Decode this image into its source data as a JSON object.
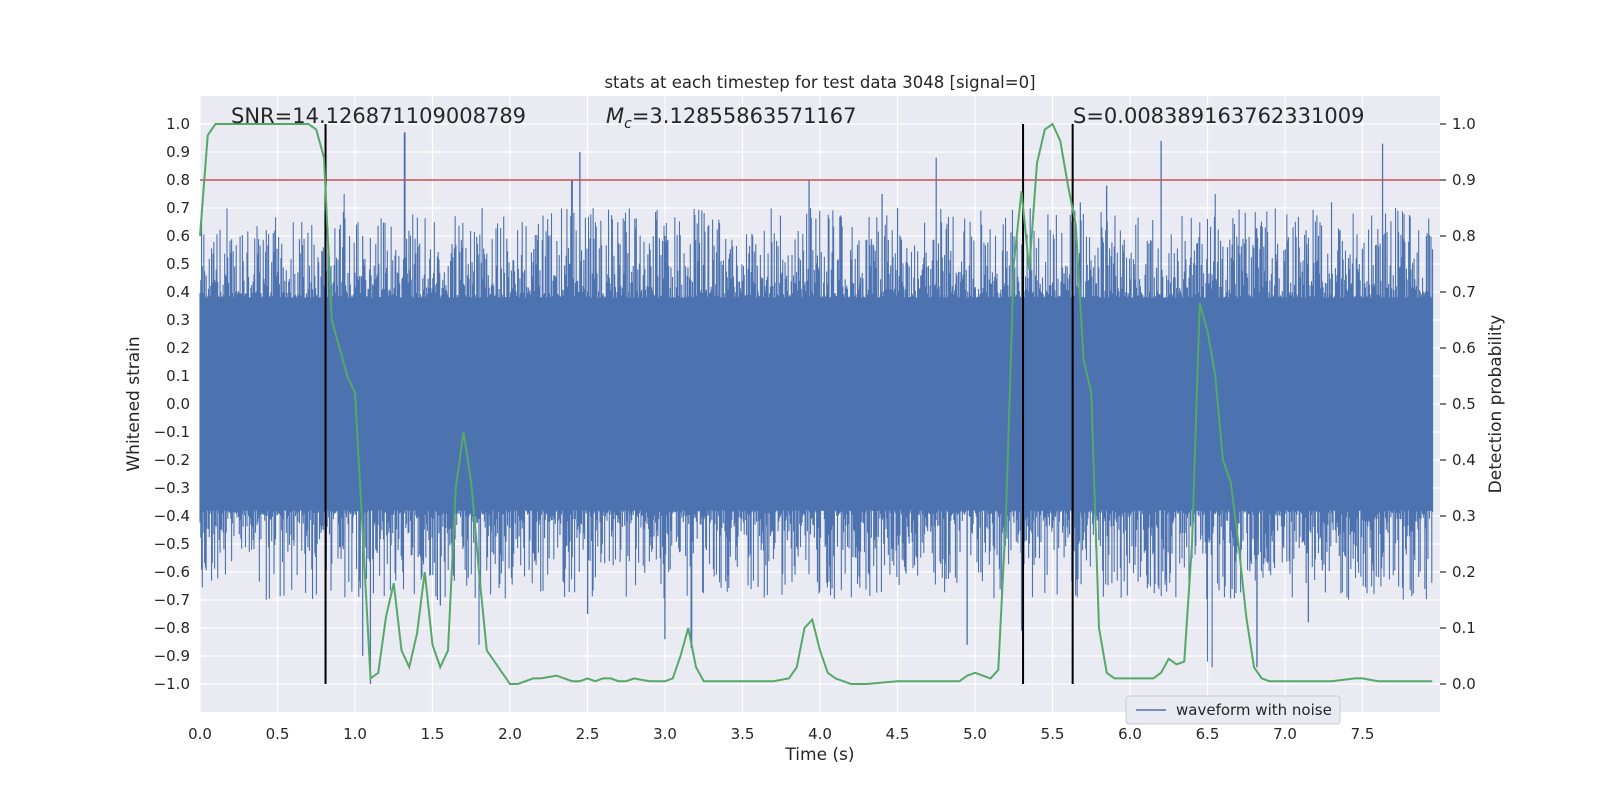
{
  "chart_data": {
    "type": "line",
    "title": "stats at each timestep for test data 3048 [signal=0]",
    "xlabel": "Time (s)",
    "ylabel": "Whitened strain",
    "y2label": "Detection probability",
    "xlim": [
      0.0,
      8.0
    ],
    "ylim": [
      -1.1,
      1.1
    ],
    "y2lim": [
      -0.05,
      1.05
    ],
    "xticks": [
      0.0,
      0.5,
      1.0,
      1.5,
      2.0,
      2.5,
      3.0,
      3.5,
      4.0,
      4.5,
      5.0,
      5.5,
      6.0,
      6.5,
      7.0,
      7.5
    ],
    "yticks": [
      -1.0,
      -0.9,
      -0.8,
      -0.7,
      -0.6,
      -0.5,
      -0.4,
      -0.3,
      -0.2,
      -0.1,
      0.0,
      0.1,
      0.2,
      0.3,
      0.4,
      0.5,
      0.6,
      0.7,
      0.8,
      0.9,
      1.0
    ],
    "y2ticks": [
      0.0,
      0.1,
      0.2,
      0.3,
      0.4,
      0.5,
      0.6,
      0.7,
      0.8,
      0.9,
      1.0
    ],
    "grid": true,
    "legend_position": "lower-right",
    "annotations": {
      "snr": "SNR=14.126871109008789",
      "mc_symbol": "M",
      "mc_sub": "c",
      "mc_value": "=3.12855863571167",
      "s": "S=0.008389163762331009"
    },
    "threshold_y": 0.8,
    "vertical_lines_x": [
      0.81,
      5.31,
      5.63
    ],
    "series": [
      {
        "name": "waveform with noise",
        "kind": "noise-band",
        "envelope_upper_prominent_peaks": [
          [
            0.93,
            0.75
          ],
          [
            1.05,
            0.6
          ],
          [
            1.32,
            0.97
          ],
          [
            1.82,
            0.7
          ],
          [
            2.4,
            0.8
          ],
          [
            2.45,
            0.9
          ],
          [
            3.0,
            0.6
          ],
          [
            3.93,
            0.8
          ],
          [
            4.4,
            0.75
          ],
          [
            4.5,
            0.7
          ],
          [
            4.75,
            0.88
          ],
          [
            5.68,
            0.72
          ],
          [
            5.85,
            0.78
          ],
          [
            6.2,
            0.94
          ],
          [
            6.55,
            0.75
          ],
          [
            7.3,
            0.72
          ],
          [
            7.63,
            0.93
          ]
        ],
        "envelope_lower_prominent_troughs": [
          [
            1.05,
            -0.9
          ],
          [
            1.1,
            -1.0
          ],
          [
            1.55,
            -0.72
          ],
          [
            1.8,
            -0.86
          ],
          [
            2.5,
            -0.75
          ],
          [
            3.0,
            -0.84
          ],
          [
            3.17,
            -0.87
          ],
          [
            4.95,
            -0.86
          ],
          [
            5.3,
            -0.81
          ],
          [
            6.5,
            -0.92
          ],
          [
            6.53,
            -0.94
          ],
          [
            6.82,
            -0.94
          ],
          [
            7.15,
            -0.78
          ]
        ]
      },
      {
        "name": "",
        "axis": "y2",
        "color": "#55a868",
        "x": [
          0.0,
          0.05,
          0.1,
          0.15,
          0.2,
          0.3,
          0.4,
          0.5,
          0.6,
          0.7,
          0.75,
          0.8,
          0.85,
          0.9,
          0.95,
          1.0,
          1.05,
          1.1,
          1.15,
          1.2,
          1.25,
          1.3,
          1.35,
          1.4,
          1.45,
          1.5,
          1.55,
          1.6,
          1.65,
          1.7,
          1.75,
          1.8,
          1.85,
          1.9,
          1.95,
          2.0,
          2.05,
          2.1,
          2.15,
          2.2,
          2.3,
          2.4,
          2.45,
          2.5,
          2.55,
          2.6,
          2.65,
          2.7,
          2.75,
          2.8,
          2.9,
          3.0,
          3.05,
          3.1,
          3.15,
          3.2,
          3.25,
          3.3,
          3.4,
          3.6,
          3.7,
          3.8,
          3.85,
          3.9,
          3.95,
          4.0,
          4.05,
          4.1,
          4.15,
          4.2,
          4.3,
          4.5,
          4.7,
          4.8,
          4.9,
          4.95,
          5.0,
          5.05,
          5.1,
          5.15,
          5.2,
          5.25,
          5.3,
          5.35,
          5.4,
          5.45,
          5.5,
          5.55,
          5.6,
          5.65,
          5.7,
          5.75,
          5.8,
          5.85,
          5.9,
          6.0,
          6.1,
          6.15,
          6.2,
          6.25,
          6.3,
          6.35,
          6.4,
          6.45,
          6.5,
          6.55,
          6.6,
          6.65,
          6.7,
          6.75,
          6.8,
          6.85,
          6.9,
          7.0,
          7.1,
          7.3,
          7.45,
          7.5,
          7.6,
          7.8,
          7.95
        ],
        "values": [
          0.8,
          0.98,
          1.0,
          1.0,
          1.0,
          1.0,
          1.0,
          1.0,
          1.0,
          1.0,
          0.99,
          0.94,
          0.65,
          0.6,
          0.55,
          0.52,
          0.27,
          0.01,
          0.02,
          0.12,
          0.18,
          0.06,
          0.03,
          0.09,
          0.2,
          0.07,
          0.03,
          0.06,
          0.35,
          0.45,
          0.36,
          0.2,
          0.06,
          0.04,
          0.02,
          0.0,
          0.0,
          0.005,
          0.01,
          0.01,
          0.015,
          0.005,
          0.005,
          0.01,
          0.005,
          0.01,
          0.01,
          0.005,
          0.005,
          0.01,
          0.005,
          0.005,
          0.01,
          0.05,
          0.1,
          0.03,
          0.005,
          0.005,
          0.005,
          0.005,
          0.005,
          0.01,
          0.03,
          0.1,
          0.115,
          0.06,
          0.02,
          0.01,
          0.005,
          0.0,
          0.0,
          0.005,
          0.005,
          0.005,
          0.005,
          0.015,
          0.02,
          0.015,
          0.01,
          0.025,
          0.3,
          0.75,
          0.88,
          0.74,
          0.93,
          0.99,
          1.0,
          0.97,
          0.89,
          0.82,
          0.58,
          0.52,
          0.1,
          0.02,
          0.01,
          0.01,
          0.01,
          0.01,
          0.02,
          0.045,
          0.035,
          0.04,
          0.25,
          0.68,
          0.63,
          0.55,
          0.4,
          0.36,
          0.25,
          0.12,
          0.03,
          0.01,
          0.005,
          0.005,
          0.005,
          0.005,
          0.01,
          0.01,
          0.005,
          0.005,
          0.005
        ]
      }
    ]
  }
}
